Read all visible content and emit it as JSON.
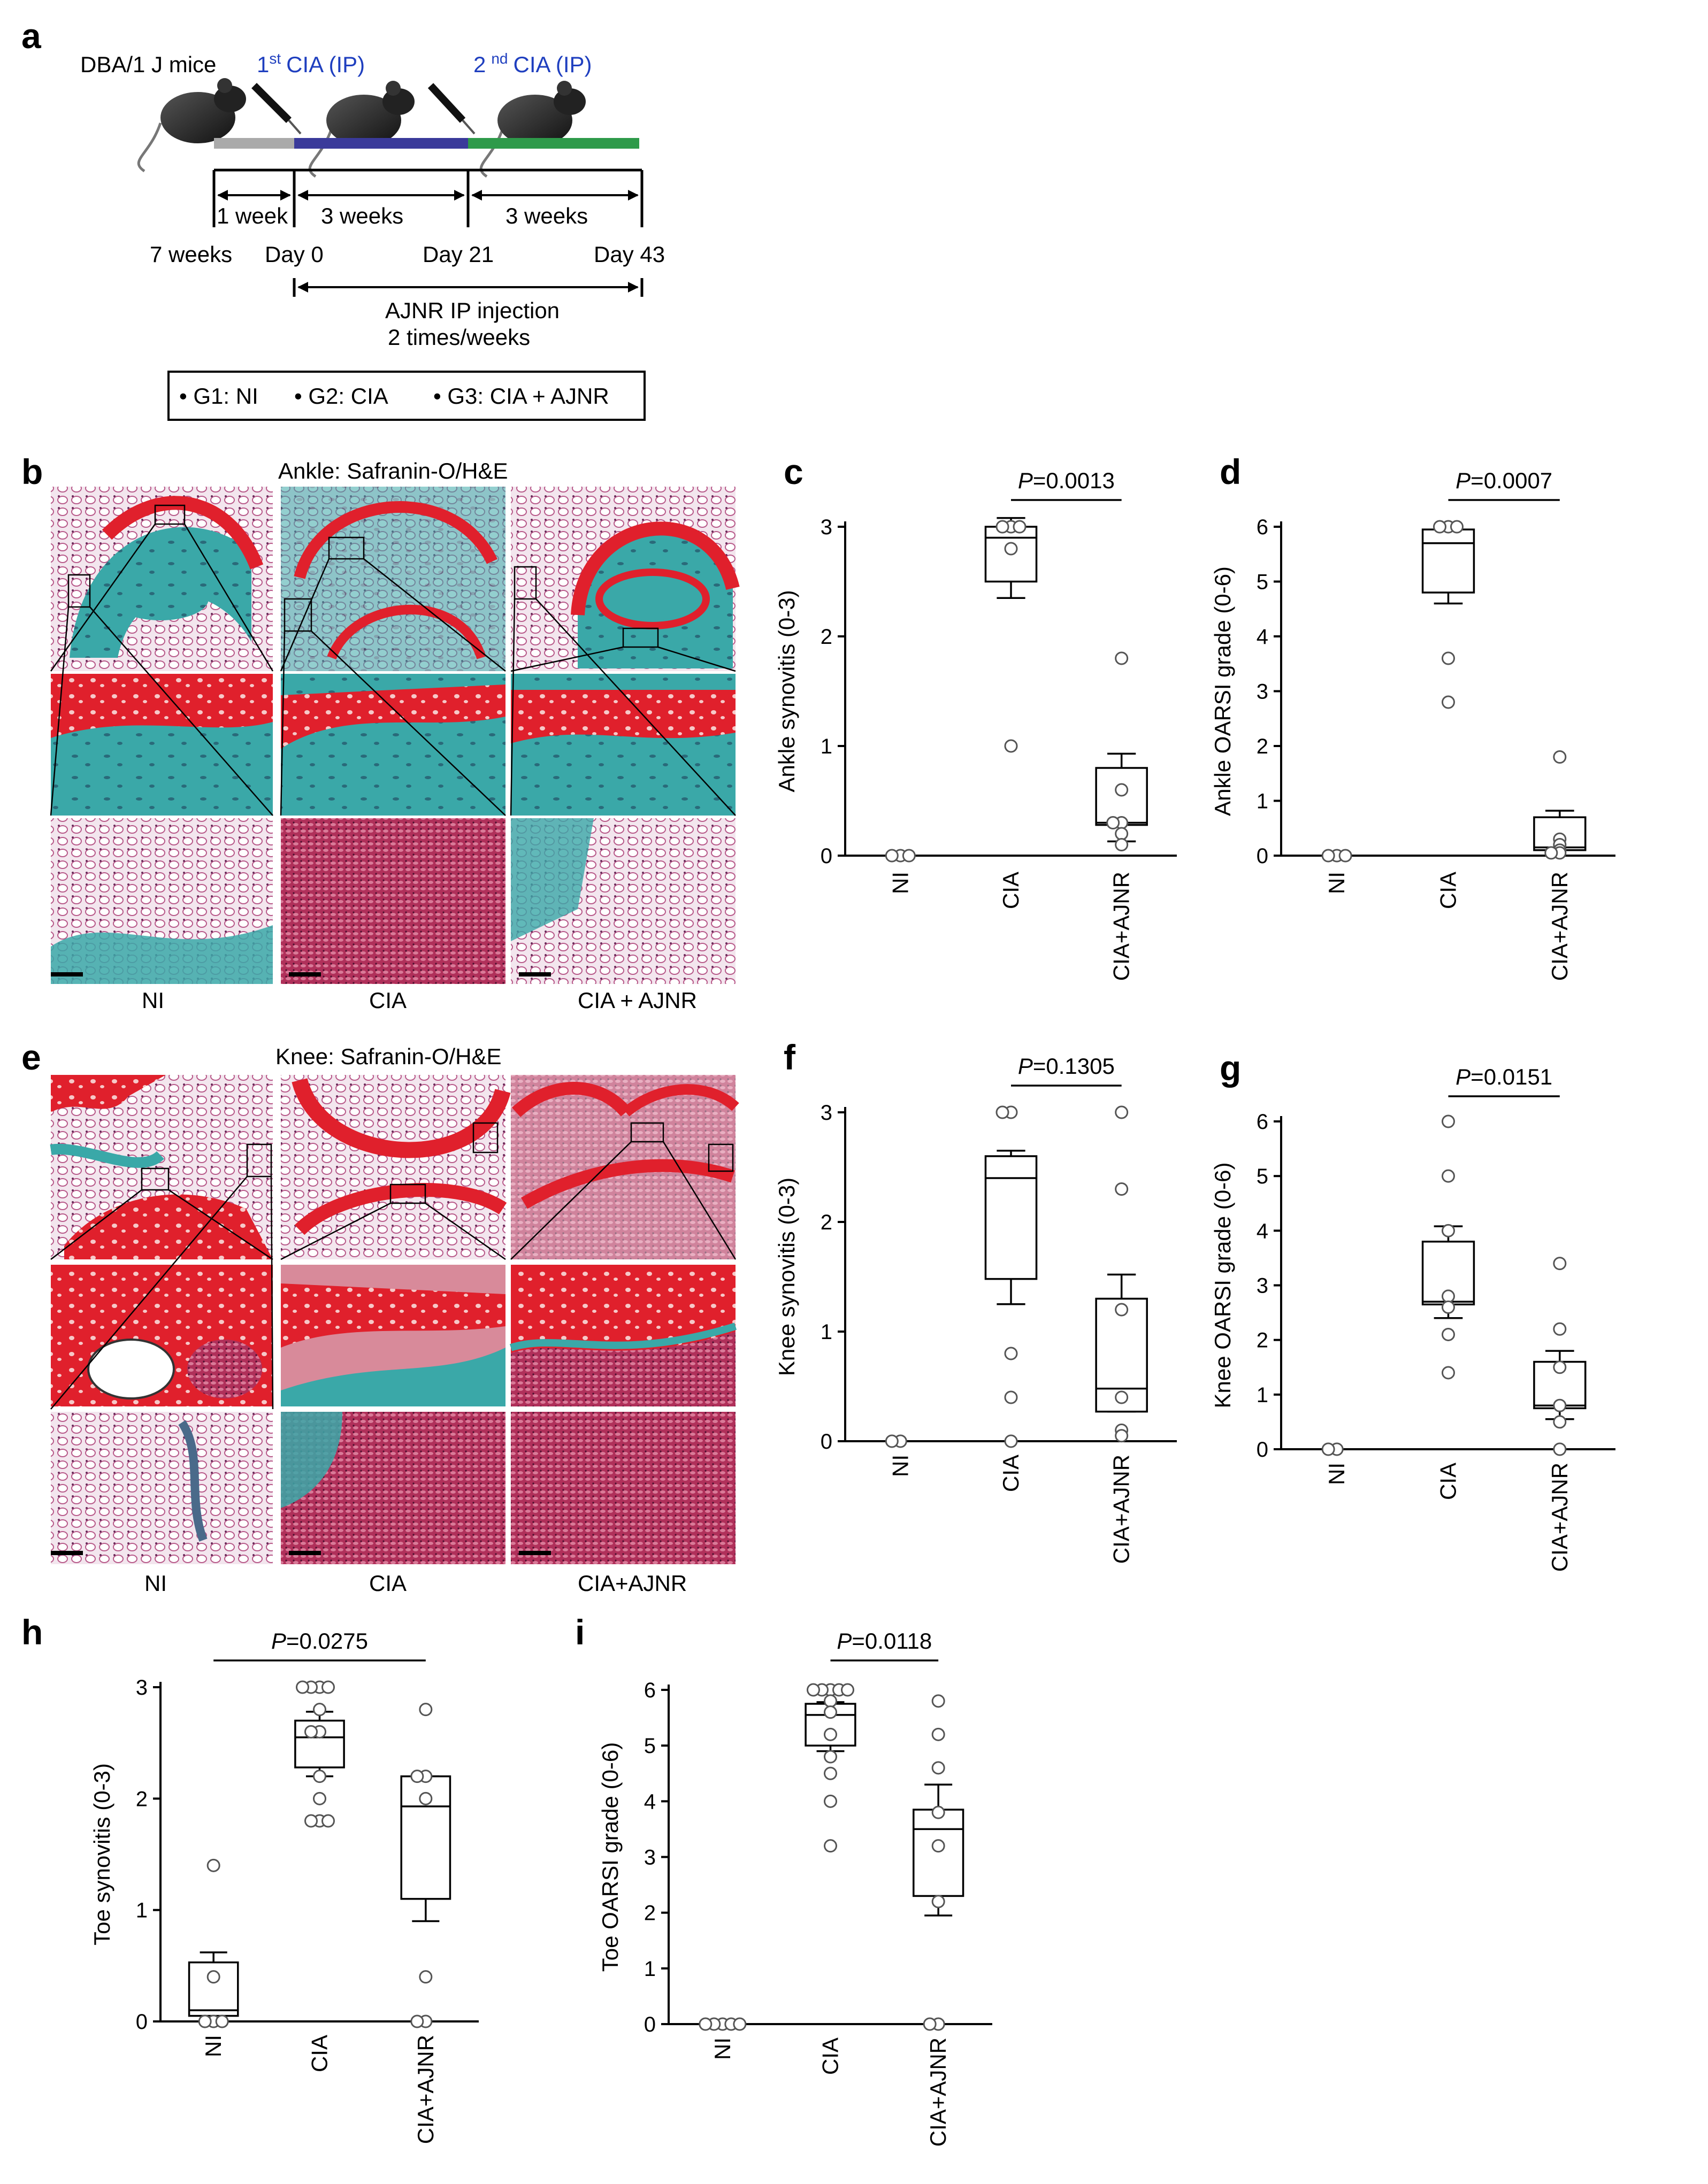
{
  "panel_letters": [
    "a",
    "b",
    "c",
    "d",
    "e",
    "f",
    "g",
    "h",
    "i"
  ],
  "timeline": {
    "mice": "DBA/1 J mice",
    "cia1_sup": "st",
    "cia1_pre": "1",
    "cia1_text": "CIA (IP)",
    "cia2_sup": "nd",
    "cia2_pre": "2",
    "cia2_text": "CIA (IP)",
    "interval1": "1 week",
    "interval2": "3 weeks",
    "interval3": "3 weeks",
    "t0": "7 weeks",
    "t1": "Day 0",
    "t2": "Day 21",
    "t3": "Day 43",
    "inj1": "AJNR IP injection",
    "inj2": "2 times/weeks",
    "groups": [
      "• G1: NI",
      "• G2: CIA",
      "• G3: CIA + AJNR"
    ],
    "colors": {
      "gray": "#aaaaaa",
      "blue": "#3a3a9a",
      "green": "#2e9a4a"
    }
  },
  "histology": {
    "ankle_title": "Ankle: Safranin-O/H&E",
    "ankle_labels": [
      "NI",
      "CIA",
      "CIA + AJNR"
    ],
    "knee_title": "Knee: Safranin-O/H&E",
    "knee_labels": [
      "NI",
      "CIA",
      "CIA+AJNR"
    ]
  },
  "chart_data": [
    {
      "id": "c",
      "type": "box",
      "ylabel": "Ankle synovitis (0-3)",
      "categories": [
        "NI",
        "CIA",
        "CIA+AJNR"
      ],
      "ylim": [
        0,
        3
      ],
      "yticks": [
        0,
        1,
        2,
        3
      ],
      "pvalue": "=0.0013",
      "pvalue_p": "P",
      "compare": [
        1,
        2
      ],
      "boxes": [
        null,
        {
          "q1": 2.5,
          "median": 2.9,
          "q3": 3.0,
          "lo": 2.35,
          "hi": 3.08
        },
        {
          "q1": 0.28,
          "median": 0.3,
          "q3": 0.8,
          "lo": 0.13,
          "hi": 0.93
        }
      ],
      "points": [
        [
          0,
          0,
          0
        ],
        [
          3,
          3,
          3,
          2.8,
          1.0
        ],
        [
          1.8,
          0.6,
          0.3,
          0.3,
          0.2,
          0.1
        ]
      ]
    },
    {
      "id": "d",
      "type": "box",
      "ylabel": "Ankle OARSI grade (0-6)",
      "categories": [
        "NI",
        "CIA",
        "CIA+AJNR"
      ],
      "ylim": [
        0,
        6
      ],
      "yticks": [
        0,
        1,
        2,
        3,
        4,
        5,
        6
      ],
      "pvalue": "=0.0007",
      "pvalue_p": "P",
      "compare": [
        1,
        2
      ],
      "boxes": [
        null,
        {
          "q1": 4.8,
          "median": 5.7,
          "q3": 5.95,
          "lo": 4.6,
          "hi": 6.0
        },
        {
          "q1": 0.1,
          "median": 0.15,
          "q3": 0.7,
          "lo": 0.0,
          "hi": 0.82
        }
      ],
      "points": [
        [
          0,
          0,
          0
        ],
        [
          6,
          6,
          6,
          3.6,
          2.8
        ],
        [
          1.8,
          0.3,
          0.2,
          0.1,
          0.05,
          0.05
        ]
      ]
    },
    {
      "id": "f",
      "type": "box",
      "ylabel": "Knee synovitis (0-3)",
      "categories": [
        "NI",
        "CIA",
        "CIA+AJNR"
      ],
      "ylim": [
        0,
        3
      ],
      "yticks": [
        0,
        1,
        2,
        3
      ],
      "pvalue": "=0.1305",
      "pvalue_p": "P",
      "compare": [
        1,
        2
      ],
      "boxes": [
        null,
        {
          "q1": 1.48,
          "median": 2.4,
          "q3": 2.6,
          "lo": 1.25,
          "hi": 2.65
        },
        {
          "q1": 0.27,
          "median": 0.48,
          "q3": 1.3,
          "lo": 0.27,
          "hi": 1.52
        }
      ],
      "points": [
        [
          0,
          0
        ],
        [
          3,
          3,
          0.8,
          0.4,
          0
        ],
        [
          3,
          2.3,
          1.2,
          0.4,
          0.1,
          0.05
        ]
      ]
    },
    {
      "id": "g",
      "type": "box",
      "ylabel": "Knee OARSI grade (0-6)",
      "categories": [
        "NI",
        "CIA",
        "CIA+AJNR"
      ],
      "ylim": [
        0,
        6
      ],
      "yticks": [
        0,
        1,
        2,
        3,
        4,
        5,
        6
      ],
      "pvalue": "=0.0151",
      "pvalue_p": "P",
      "compare": [
        1,
        2
      ],
      "boxes": [
        null,
        {
          "q1": 2.65,
          "median": 2.7,
          "q3": 3.8,
          "lo": 2.4,
          "hi": 4.08
        },
        {
          "q1": 0.75,
          "median": 0.8,
          "q3": 1.6,
          "lo": 0.55,
          "hi": 1.8
        }
      ],
      "points": [
        [
          0,
          0
        ],
        [
          6,
          5,
          4,
          2.8,
          2.6,
          2.1,
          1.4
        ],
        [
          3.4,
          2.2,
          1.5,
          0.8,
          0.5,
          0.0
        ]
      ]
    },
    {
      "id": "h",
      "type": "box",
      "ylabel": "Toe synovitis (0-3)",
      "categories": [
        "NI",
        "CIA",
        "CIA+AJNR"
      ],
      "ylim": [
        0,
        3
      ],
      "yticks": [
        0,
        1,
        2,
        3
      ],
      "pvalue": "=0.0275",
      "pvalue_p": "P",
      "compare": [
        0,
        2
      ],
      "boxes": [
        {
          "q1": 0.05,
          "median": 0.1,
          "q3": 0.53,
          "lo": 0.0,
          "hi": 0.62
        },
        {
          "q1": 2.28,
          "median": 2.55,
          "q3": 2.7,
          "lo": 2.2,
          "hi": 2.78
        },
        {
          "q1": 1.1,
          "median": 1.93,
          "q3": 2.2,
          "lo": 0.9,
          "hi": 2.2
        }
      ],
      "points": [
        [
          1.4,
          0.4,
          0,
          0,
          0
        ],
        [
          3,
          3,
          3,
          3,
          2.8,
          2.6,
          2.6,
          2.2,
          2.0,
          1.8,
          1.8,
          1.8
        ],
        [
          2.8,
          2.2,
          2.2,
          2.0,
          0.4,
          0,
          0
        ]
      ]
    },
    {
      "id": "i",
      "type": "box",
      "ylabel": "Toe OARSI grade (0-6)",
      "categories": [
        "NI",
        "CIA",
        "CIA+AJNR"
      ],
      "ylim": [
        0,
        6
      ],
      "yticks": [
        0,
        1,
        2,
        3,
        4,
        5,
        6
      ],
      "pvalue": "=0.0118",
      "pvalue_p": "P",
      "compare": [
        1,
        2
      ],
      "boxes": [
        null,
        {
          "q1": 5.0,
          "median": 5.55,
          "q3": 5.75,
          "lo": 4.9,
          "hi": 5.78
        },
        {
          "q1": 2.3,
          "median": 3.5,
          "q3": 3.85,
          "lo": 1.95,
          "hi": 4.3
        }
      ],
      "points": [
        [
          0,
          0,
          0,
          0,
          0
        ],
        [
          6,
          6,
          6,
          6,
          6,
          5.8,
          5.6,
          5.2,
          4.8,
          4.5,
          4.0,
          3.2
        ],
        [
          5.8,
          5.2,
          4.6,
          3.8,
          3.2,
          2.2,
          0,
          0
        ]
      ]
    }
  ]
}
